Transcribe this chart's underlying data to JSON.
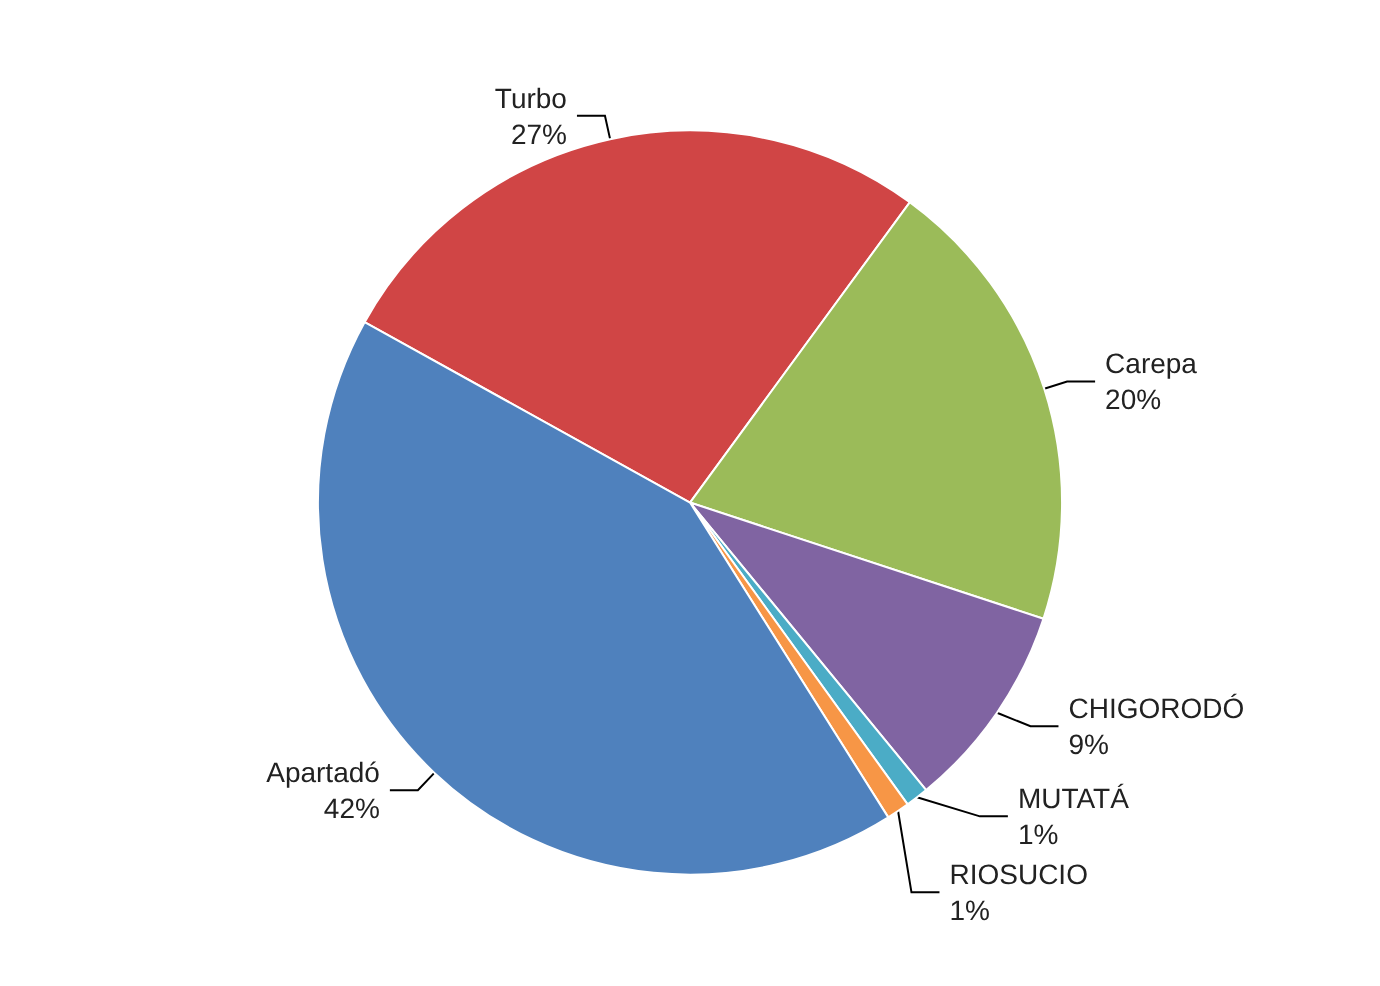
{
  "chart_data": {
    "type": "pie",
    "categories": [
      "Turbo",
      "Carepa",
      "CHIGORODÓ",
      "MUTATÁ",
      "RIOSUCIO",
      "Apartadó"
    ],
    "values": [
      27,
      20,
      9,
      1,
      1,
      42
    ],
    "colors": [
      "#d04545",
      "#9bbb59",
      "#8064a2",
      "#4bacc6",
      "#f79646",
      "#4f81bd"
    ],
    "value_labels": [
      "27%",
      "20%",
      "9%",
      "1%",
      "1%",
      "42%"
    ]
  }
}
